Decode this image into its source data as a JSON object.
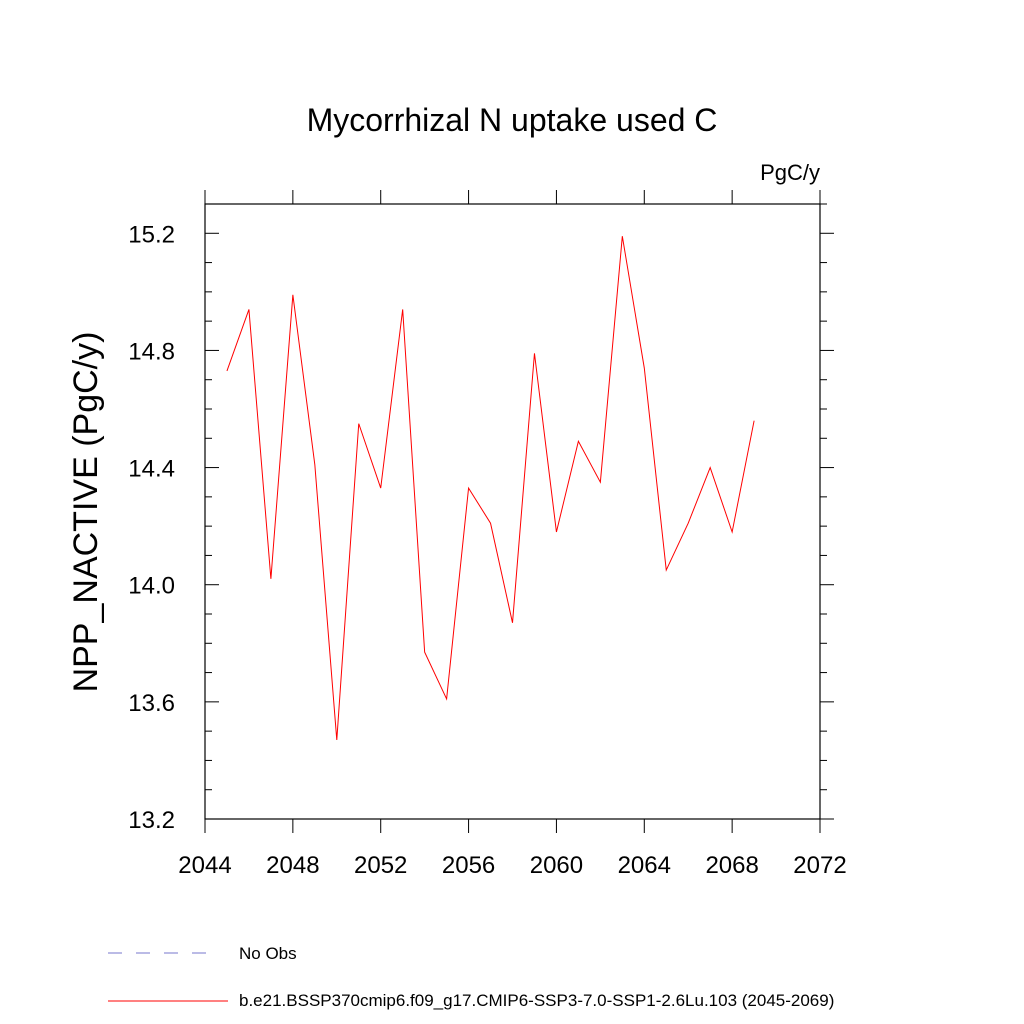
{
  "chart_data": {
    "type": "line",
    "title": "Mycorrhizal N uptake used C",
    "units_label": "PgC/y",
    "ylabel": "NPP_NACTIVE  (PgC/y)",
    "xlabel": "",
    "xlim": [
      2044,
      2072
    ],
    "ylim": [
      13.2,
      15.3
    ],
    "x_ticks": [
      2044,
      2048,
      2052,
      2056,
      2060,
      2064,
      2068,
      2072
    ],
    "x_tick_labels": [
      "2044",
      "2048",
      "2052",
      "2056",
      "2060",
      "2064",
      "2068",
      "2072"
    ],
    "y_ticks": [
      13.2,
      13.6,
      14.0,
      14.4,
      14.8,
      15.2
    ],
    "y_tick_labels": [
      "13.2",
      "13.6",
      "14.0",
      "14.4",
      "14.8",
      "15.2"
    ],
    "series": [
      {
        "name": "b.e21.BSSP370cmip6.f09_g17.CMIP6-SSP3-7.0-SSP1-2.6Lu.103 (2045-2069)",
        "color": "#ff0000",
        "x": [
          2045,
          2046,
          2047,
          2048,
          2049,
          2050,
          2051,
          2052,
          2053,
          2054,
          2055,
          2056,
          2057,
          2058,
          2059,
          2060,
          2061,
          2062,
          2063,
          2064,
          2065,
          2066,
          2067,
          2068,
          2069
        ],
        "values": [
          14.73,
          14.94,
          14.02,
          14.99,
          14.41,
          13.47,
          14.55,
          14.33,
          14.94,
          13.77,
          13.61,
          14.33,
          14.21,
          13.87,
          14.79,
          14.18,
          14.49,
          14.35,
          15.19,
          14.74,
          14.05,
          14.21,
          14.4,
          14.18,
          14.56
        ]
      }
    ],
    "legend": [
      {
        "label": "No Obs",
        "style": "dashed",
        "color": "#7777cc"
      },
      {
        "label": "b.e21.BSSP370cmip6.f09_g17.CMIP6-SSP3-7.0-SSP1-2.6Lu.103 (2045-2069)",
        "style": "solid",
        "color": "#ff0000"
      }
    ]
  }
}
